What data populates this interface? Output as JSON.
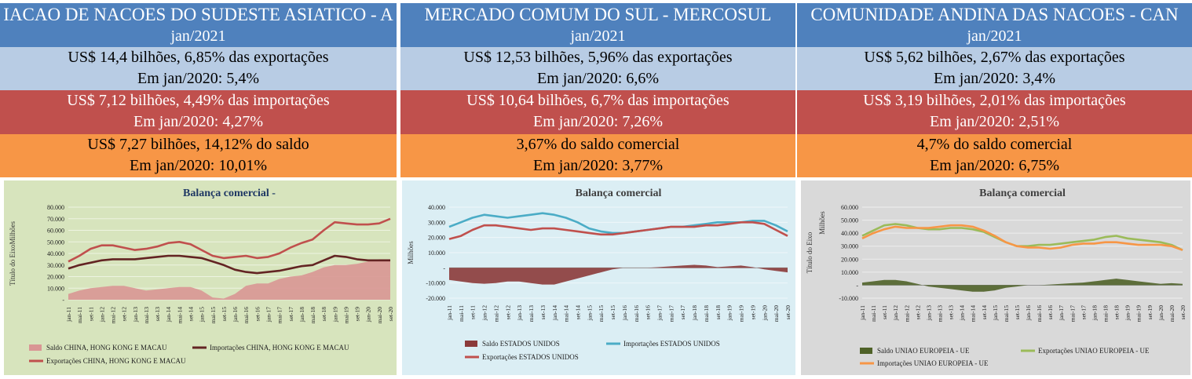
{
  "panels": [
    {
      "header": "IACAO DE NACOES DO SUDESTE ASIATICO - A",
      "date": "jan/2021",
      "exports": [
        "US$ 14,4 bilhões, 6,85% das exportações",
        "Em jan/2020: 5,4%"
      ],
      "imports": [
        "US$ 7,12 bilhões, 4,49% das importações",
        "Em jan/2020: 4,27%"
      ],
      "balance": [
        "US$ 7,27 bilhões, 14,12% do saldo",
        "Em jan/2020: 10,01%"
      ]
    },
    {
      "header": "MERCADO COMUM DO SUL - MERCOSUL",
      "date": "jan/2021",
      "exports": [
        "US$ 12,53 bilhões, 5,96% das exportações",
        "Em jan/2020: 6,6%"
      ],
      "imports": [
        "US$ 10,64 bilhões, 6,7% das importações",
        "Em jan/2020: 7,26%"
      ],
      "balance": [
        "3,67% do saldo comercial",
        "Em jan/2020: 3,77%"
      ]
    },
    {
      "header": "COMUNIDADE ANDINA DAS NACOES - CAN",
      "date": "jan/2021",
      "exports": [
        "US$ 5,62 bilhões, 2,67% das exportações",
        "Em jan/2020: 3,4%"
      ],
      "imports": [
        "US$ 3,19 bilhões, 2,01% das importações",
        "Em jan/2020: 2,51%"
      ],
      "balance": [
        "4,7% do saldo comercial",
        "Em jan/2020: 6,75%"
      ]
    }
  ],
  "colors": {
    "header": "#4f81bd",
    "exports_row": "#b8cce4",
    "imports_row": "#c0504d",
    "balance_row": "#f79646"
  },
  "chart_data": [
    {
      "type": "line",
      "title": "Balança comercial -",
      "ylabel": "Título do EixoMilhões",
      "ylim": [
        0,
        80000
      ],
      "yticks": [
        "-",
        "10.000",
        "20.000",
        "30.000",
        "40.000",
        "50.000",
        "60.000",
        "70.000",
        "80.000"
      ],
      "x_ticks": [
        "jan-11",
        "mai-11",
        "set-11",
        "jan-12",
        "mai-12",
        "set-12",
        "jan-13",
        "mai-13",
        "set-13",
        "jan-14",
        "mai-14",
        "set-14",
        "jan-15",
        "mai-15",
        "set-15",
        "jan-16",
        "mai-16",
        "set-16",
        "jan-17",
        "mai-17",
        "set-17",
        "jan-18",
        "mai-18",
        "set-18",
        "jan-19",
        "mai-19",
        "set-19",
        "jan-20",
        "mai-20",
        "set-20"
      ],
      "background": "#d7e4bd",
      "series": [
        {
          "name": "Saldo  CHINA, HONG KONG E MACAU",
          "style": "area",
          "color": "#d99694",
          "values": [
            5000,
            8000,
            10000,
            11000,
            12000,
            12000,
            10000,
            8000,
            9000,
            10000,
            11000,
            11000,
            8000,
            2000,
            1000,
            5000,
            12000,
            14000,
            14000,
            18000,
            20000,
            21000,
            24000,
            28000,
            30000,
            30000,
            31000,
            33000,
            35000,
            35000
          ]
        },
        {
          "name": "Importações  CHINA, HONG KONG E MACAU",
          "style": "line",
          "color": "#632423",
          "values": [
            27000,
            30000,
            32000,
            34000,
            35000,
            35000,
            35000,
            36000,
            37000,
            38000,
            38000,
            37000,
            36000,
            33000,
            30000,
            26000,
            24000,
            23000,
            24000,
            25000,
            27000,
            29000,
            30000,
            34000,
            38000,
            37000,
            35000,
            34000,
            34000,
            34000
          ]
        },
        {
          "name": "Exportações  CHINA, HONG KONG E MACAU",
          "style": "line",
          "color": "#c0504d",
          "values": [
            33000,
            38000,
            44000,
            47000,
            47000,
            45000,
            43000,
            44000,
            46000,
            49000,
            50000,
            48000,
            43000,
            38000,
            36000,
            37000,
            38000,
            36000,
            37000,
            40000,
            45000,
            49000,
            52000,
            60000,
            67000,
            66000,
            65000,
            65000,
            66000,
            70000
          ]
        }
      ]
    },
    {
      "type": "line",
      "title": "Balança comercial",
      "ylabel": "Milhões",
      "ylim": [
        -20000,
        40000
      ],
      "yticks": [
        "-20.000",
        "-10.000",
        "-",
        "10.000",
        "20.000",
        "30.000",
        "40.000"
      ],
      "x_ticks": [
        "jan-11",
        "mai-11",
        "set-11",
        "jan-12",
        "mai-12",
        "set-12",
        "jan-13",
        "mai-13",
        "set-13",
        "jan-14",
        "mai-14",
        "set-14",
        "jan-15",
        "mai-15",
        "set-15",
        "jan-16",
        "mai-16",
        "set-16",
        "jan-17",
        "mai-17",
        "set-17",
        "jan-18",
        "mai-18",
        "set-18",
        "jan-19",
        "mai-19",
        "set-19",
        "jan-20",
        "mai-20",
        "set-20"
      ],
      "background": "#dbeef4",
      "series": [
        {
          "name": "Saldo  ESTADOS UNIDOS",
          "style": "area",
          "color": "#8b3a3a",
          "values": [
            -8000,
            -9000,
            -10000,
            -10500,
            -10000,
            -9000,
            -9000,
            -10000,
            -11000,
            -11000,
            -9000,
            -7000,
            -5000,
            -3000,
            -1000,
            0,
            0,
            0,
            500,
            1000,
            1500,
            2000,
            1500,
            500,
            1000,
            1500,
            500,
            -1000,
            -2000,
            -3000
          ]
        },
        {
          "name": "Importações  ESTADOS UNIDOS",
          "style": "line",
          "color": "#4bacc6",
          "values": [
            27000,
            30000,
            33000,
            35000,
            34000,
            33000,
            34000,
            35000,
            36000,
            35000,
            33000,
            30000,
            26000,
            24000,
            23000,
            23000,
            24000,
            25000,
            26000,
            27000,
            27000,
            28000,
            29000,
            30000,
            30000,
            30000,
            31000,
            31000,
            28000,
            24000
          ]
        },
        {
          "name": "Exportações  ESTADOS UNIDOS",
          "style": "line",
          "color": "#c0504d",
          "values": [
            19000,
            21000,
            25000,
            28000,
            28000,
            27000,
            26000,
            25000,
            26000,
            26000,
            25000,
            24000,
            23000,
            22000,
            22000,
            23000,
            24000,
            25000,
            26000,
            27000,
            27000,
            27000,
            28000,
            28000,
            29000,
            30000,
            30000,
            29000,
            25000,
            21000
          ]
        }
      ]
    },
    {
      "type": "line",
      "title": "Balança comercial",
      "ylabel": "Título do Eixo",
      "ylabel2": "Milhões",
      "ylim": [
        -10000,
        60000
      ],
      "yticks": [
        "-10.000",
        "-",
        "10.000",
        "20.000",
        "30.000",
        "40.000",
        "50.000",
        "60.000"
      ],
      "x_ticks": [
        "jan-11",
        "mai-11",
        "set-11",
        "jan-12",
        "mai-12",
        "set-12",
        "jan-13",
        "mai-13",
        "set-13",
        "jan-14",
        "mai-14",
        "set-14",
        "jan-15",
        "mai-15",
        "set-15",
        "jan-16",
        "mai-16",
        "set-16",
        "jan-17",
        "mai-17",
        "set-17",
        "jan-18",
        "mai-18",
        "set-18",
        "jan-19",
        "mai-19",
        "set-19",
        "jan-20",
        "mai-20",
        "set-20"
      ],
      "background": "#d9d9d9",
      "series": [
        {
          "name": "Saldo  UNIAO EUROPEIA - UE",
          "style": "area",
          "color": "#4f6228",
          "values": [
            2000,
            3000,
            4000,
            4000,
            3000,
            1000,
            -1000,
            -2000,
            -3000,
            -4000,
            -5000,
            -5000,
            -4000,
            -2000,
            -1000,
            0,
            0,
            500,
            1000,
            1500,
            2000,
            3000,
            4000,
            5000,
            4000,
            3000,
            2000,
            1000,
            1500,
            1000
          ]
        },
        {
          "name": "Exportações  UNIAO EUROPEIA - UE",
          "style": "line",
          "color": "#9bbb59",
          "values": [
            38000,
            42000,
            46000,
            47000,
            46000,
            44000,
            43000,
            43000,
            44000,
            44000,
            43000,
            41000,
            37000,
            33000,
            30000,
            30000,
            31000,
            31000,
            32000,
            33000,
            34000,
            35000,
            37000,
            38000,
            36000,
            35000,
            34000,
            33000,
            31000,
            27000
          ]
        },
        {
          "name": "Importações  UNIAO EUROPEIA - UE",
          "style": "line",
          "color": "#f79646",
          "values": [
            36000,
            40000,
            43000,
            45000,
            44000,
            44000,
            44000,
            45000,
            46000,
            46000,
            45000,
            42000,
            38000,
            33000,
            30000,
            29000,
            29000,
            28000,
            29000,
            31000,
            32000,
            32000,
            33000,
            33000,
            32000,
            31000,
            31000,
            31000,
            30000,
            27000
          ]
        }
      ]
    }
  ]
}
